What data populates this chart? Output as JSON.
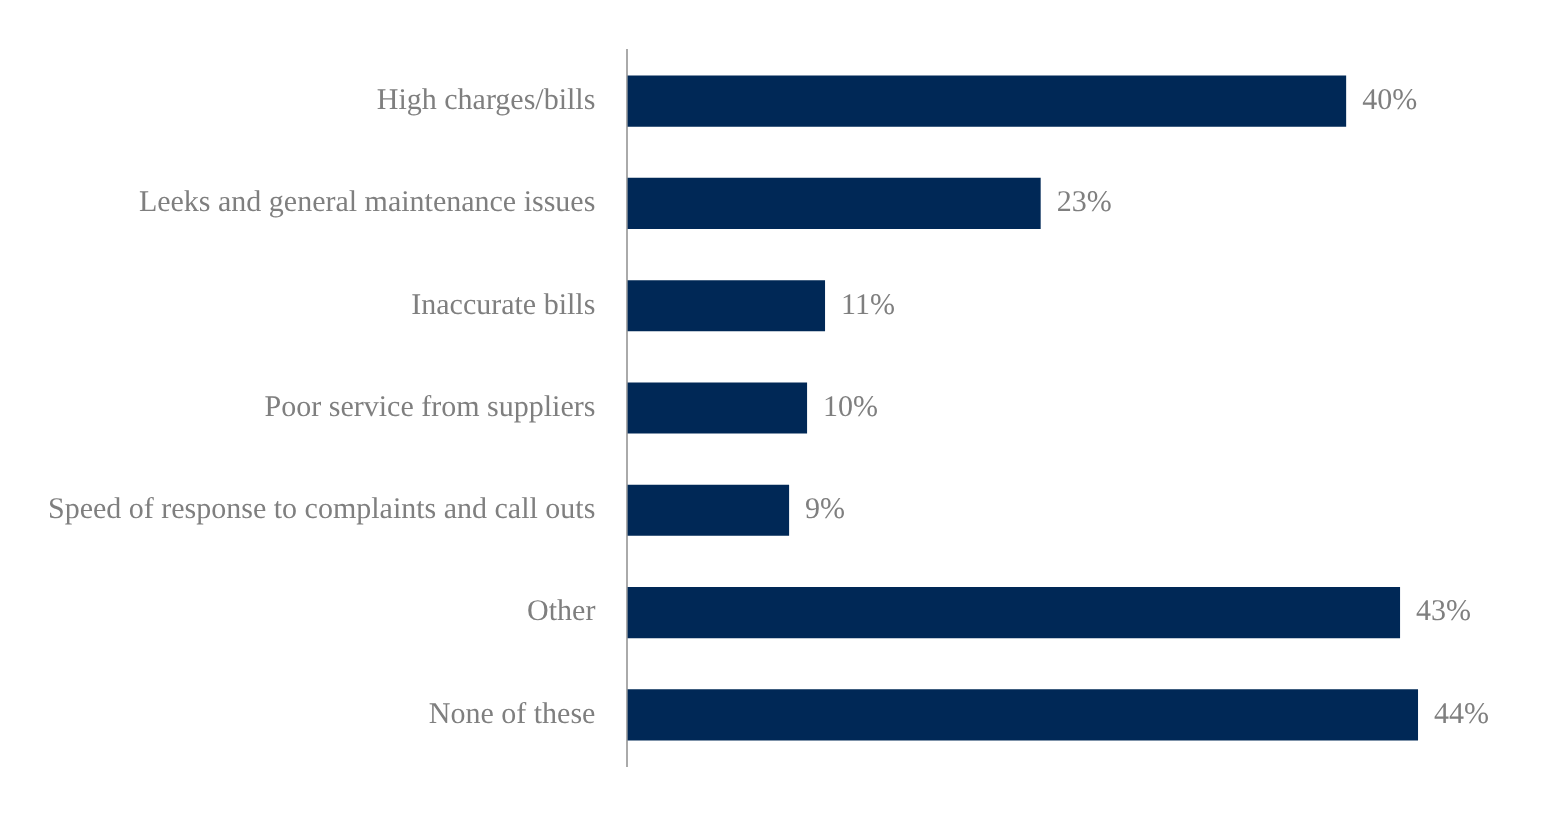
{
  "chart_data": {
    "type": "bar",
    "orientation": "horizontal",
    "categories": [
      "High charges/bills",
      "Leeks and general maintenance issues",
      "Inaccurate bills",
      "Poor service from suppliers",
      "Speed of response to complaints and call outs",
      "Other",
      "None of these"
    ],
    "values": [
      40,
      23,
      11,
      10,
      9,
      43,
      44
    ],
    "value_labels": [
      "40%",
      "23%",
      "11%",
      "10%",
      "9%",
      "43%",
      "44%"
    ],
    "color": "#002856",
    "legend": false
  }
}
